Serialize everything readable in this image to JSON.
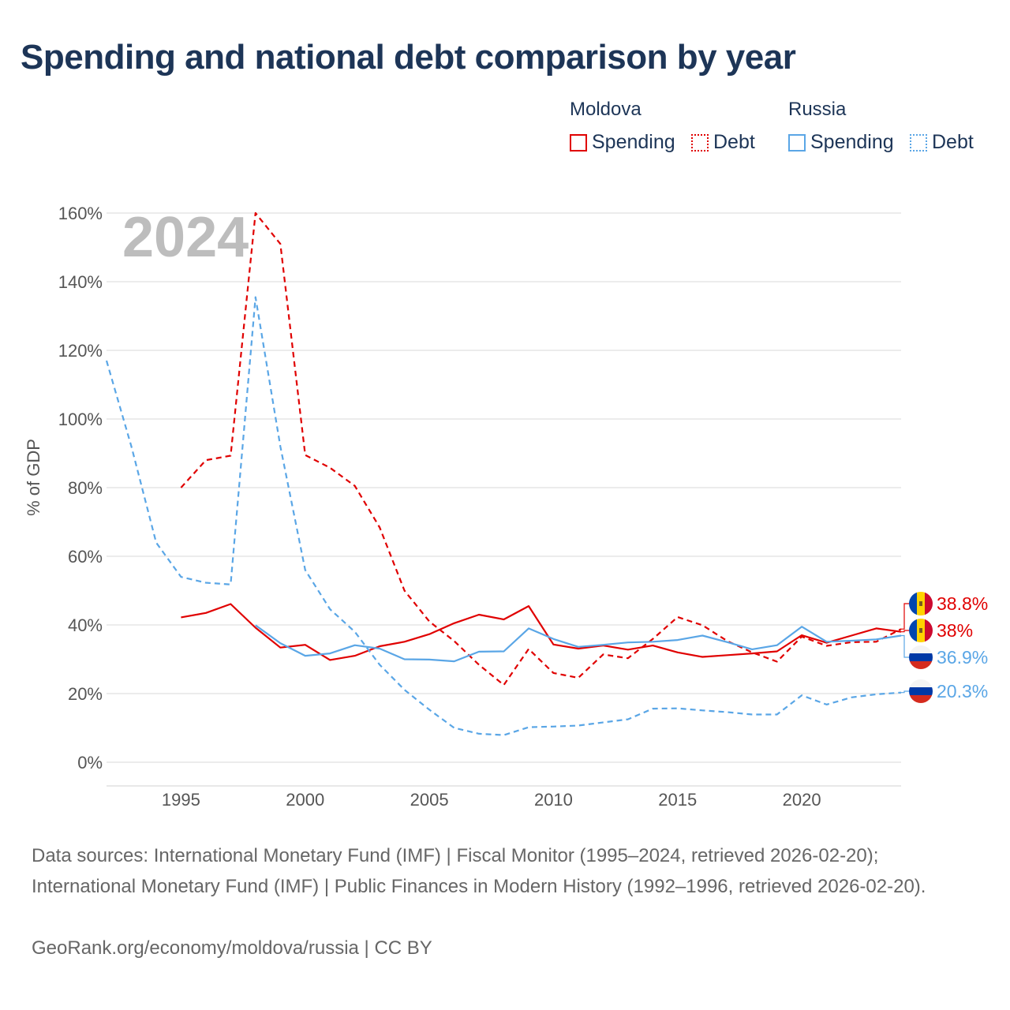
{
  "title": "Spending and national debt comparison by year",
  "legend": {
    "groups": [
      {
        "name": "Moldova",
        "color": "#e00000",
        "items": [
          "Spending",
          "Debt"
        ]
      },
      {
        "name": "Russia",
        "color": "#5aa6e6",
        "items": [
          "Spending",
          "Debt"
        ]
      }
    ]
  },
  "year_watermark": "2024",
  "footer": {
    "sources": "Data sources: International Monetary Fund (IMF) | Fiscal Monitor (1995–2024, retrieved 2026-02-20); International Monetary Fund (IMF) | Public Finances in Modern History (1992–1996, retrieved 2026-02-20).",
    "credit": "GeoRank.org/economy/moldova/russia | CC BY"
  },
  "chart_data": {
    "type": "line",
    "title": "Spending and national debt comparison by year",
    "xlabel": "",
    "ylabel": "% of GDP",
    "xlim": [
      1992,
      2024
    ],
    "ylim": [
      0,
      160
    ],
    "x_ticks": [
      1995,
      2000,
      2005,
      2010,
      2015,
      2020
    ],
    "y_ticks": [
      0,
      20,
      40,
      60,
      80,
      100,
      120,
      140,
      160
    ],
    "y_tick_labels": [
      "0%",
      "20%",
      "40%",
      "60%",
      "80%",
      "100%",
      "120%",
      "140%",
      "160%"
    ],
    "grid": true,
    "legend_position": "top-right",
    "series": [
      {
        "name": "Moldova Spending",
        "country": "Moldova",
        "metric": "Spending",
        "color": "#e00000",
        "style": "solid",
        "x": [
          1995,
          1996,
          1997,
          1998,
          1999,
          2000,
          2001,
          2002,
          2003,
          2004,
          2005,
          2006,
          2007,
          2008,
          2009,
          2010,
          2011,
          2012,
          2013,
          2014,
          2015,
          2016,
          2017,
          2018,
          2019,
          2020,
          2021,
          2022,
          2023,
          2024
        ],
        "values": [
          42.2,
          43.5,
          46.1,
          39.2,
          33.4,
          34.2,
          29.8,
          31,
          33.8,
          35.1,
          37.3,
          40.5,
          43,
          41.6,
          45.5,
          34.3,
          33.1,
          34,
          32.8,
          34,
          32,
          30.7,
          31.2,
          31.7,
          32.3,
          37,
          34.8,
          36.9,
          39,
          38
        ]
      },
      {
        "name": "Moldova Debt",
        "country": "Moldova",
        "metric": "Debt",
        "color": "#e00000",
        "style": "dashed",
        "x": [
          1995,
          1996,
          1997,
          1998,
          1999,
          2000,
          2001,
          2002,
          2003,
          2004,
          2005,
          2006,
          2007,
          2008,
          2009,
          2010,
          2011,
          2012,
          2013,
          2014,
          2015,
          2016,
          2017,
          2018,
          2019,
          2020,
          2021,
          2022,
          2023,
          2024
        ],
        "values": [
          80,
          88,
          89.3,
          160,
          151,
          89.5,
          85.8,
          80.5,
          68.4,
          50,
          41,
          35.3,
          28.4,
          22.5,
          33,
          26,
          24.6,
          31.4,
          30.3,
          35.9,
          42.3,
          39.9,
          35.3,
          32,
          29.3,
          36.6,
          33.9,
          35,
          35.1,
          38.8
        ]
      },
      {
        "name": "Russia Spending",
        "country": "Russia",
        "metric": "Spending",
        "color": "#5aa6e6",
        "style": "solid",
        "x": [
          1998,
          1999,
          2000,
          2001,
          2002,
          2003,
          2004,
          2005,
          2006,
          2007,
          2008,
          2009,
          2010,
          2011,
          2012,
          2013,
          2014,
          2015,
          2016,
          2017,
          2018,
          2019,
          2020,
          2021,
          2022,
          2023,
          2024
        ],
        "values": [
          39.9,
          34.7,
          31,
          31.7,
          34.1,
          33.1,
          30,
          29.9,
          29.4,
          32.2,
          32.3,
          39,
          35.9,
          33.6,
          34.2,
          34.9,
          35.1,
          35.6,
          36.9,
          35,
          32.9,
          34.1,
          39.5,
          35.1,
          35.4,
          35.8,
          36.9
        ]
      },
      {
        "name": "Russia Debt",
        "country": "Russia",
        "metric": "Debt",
        "color": "#5aa6e6",
        "style": "dashed",
        "x": [
          1992,
          1993,
          1994,
          1995,
          1996,
          1997,
          1998,
          1999,
          2000,
          2001,
          2002,
          2003,
          2004,
          2005,
          2006,
          2007,
          2008,
          2009,
          2010,
          2011,
          2012,
          2013,
          2014,
          2015,
          2016,
          2017,
          2018,
          2019,
          2020,
          2021,
          2022,
          2023,
          2024
        ],
        "values": [
          117,
          92,
          64,
          54,
          52.3,
          51.8,
          135.5,
          92,
          56,
          44.6,
          38,
          28.4,
          21.1,
          15.3,
          10,
          8.3,
          7.9,
          10.2,
          10.4,
          10.7,
          11.6,
          12.5,
          15.6,
          15.7,
          15.1,
          14.6,
          13.9,
          13.9,
          19.5,
          16.8,
          18.9,
          19.8,
          20.3
        ]
      }
    ],
    "end_labels": [
      {
        "text": "38.8%",
        "country": "Moldova",
        "color": "#e00000",
        "value": 38.8
      },
      {
        "text": "38%",
        "country": "Moldova",
        "color": "#e00000",
        "value": 38
      },
      {
        "text": "36.9%",
        "country": "Russia",
        "color": "#5aa6e6",
        "value": 36.9
      },
      {
        "text": "20.3%",
        "country": "Russia",
        "color": "#5aa6e6",
        "value": 20.3
      }
    ]
  }
}
